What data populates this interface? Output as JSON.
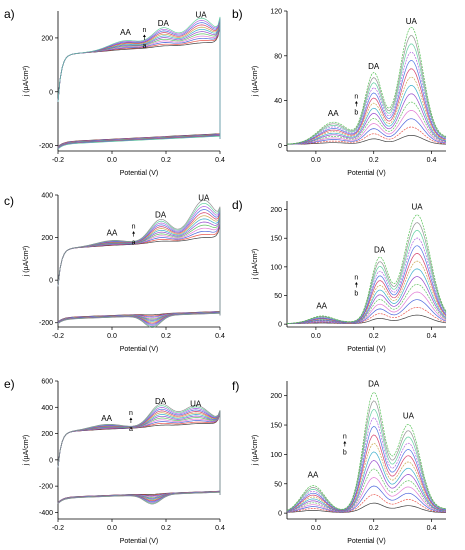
{
  "figure": {
    "xlabel": "Potential (V)",
    "ylabel_cv": "j (µA/cm²)",
    "ylabel_dpv": "j (µA/cm²)",
    "series_palette": [
      "#2e2e2e",
      "#e8463c",
      "#3a55d8",
      "#e070d0",
      "#55bb55",
      "#8c38c8",
      "#2aa8c8",
      "#c8a040",
      "#d03060",
      "#4068e0",
      "#aa55dd",
      "#55cc99",
      "#888888",
      "#44bb44"
    ]
  },
  "chart_data": [
    {
      "panel": "a)",
      "type": "line",
      "technique": "CV",
      "xlabel": "Potential (V)",
      "ylabel": "j (µA/cm²)",
      "xlim": [
        -0.2,
        0.4
      ],
      "ylim": [
        -220,
        300
      ],
      "xticks": [
        "-0.2",
        "0.0",
        "0.2",
        "0.4"
      ],
      "yticks": [
        "-200",
        "0",
        "200"
      ],
      "peaks": [
        {
          "label": "AA",
          "x": 0.05
        },
        {
          "label": "DA",
          "x": 0.19
        },
        {
          "label": "UA",
          "x": 0.33
        }
      ],
      "arrow": {
        "from": "n",
        "to": "a",
        "x": 0.12
      },
      "n_curves": 12,
      "top_base": 150,
      "bottom_base": -170,
      "edge_high": 275,
      "edge_low": -200,
      "peak_heights_last": [
        35,
        70,
        100
      ],
      "cathodic_dip": 0
    },
    {
      "panel": "b)",
      "type": "line",
      "technique": "DPV",
      "xlabel": "Potential (V)",
      "ylabel": "j (µA/cm²)",
      "xlim": [
        -0.1,
        0.45
      ],
      "ylim": [
        -5,
        120
      ],
      "xticks": [
        "0.0",
        "0.2",
        "0.4"
      ],
      "yticks": [
        "0",
        "40",
        "80",
        "120"
      ],
      "peaks": [
        {
          "label": "AA",
          "x": 0.06
        },
        {
          "label": "DA",
          "x": 0.2
        },
        {
          "label": "UA",
          "x": 0.33
        }
      ],
      "arrow": {
        "from": "n",
        "to": "b",
        "x": 0.14
      },
      "n_curves": 14,
      "peak_heights_last": [
        18,
        60,
        100
      ],
      "peak_widths": [
        0.05,
        0.03,
        0.04
      ]
    },
    {
      "panel": "c)",
      "type": "line",
      "technique": "CV",
      "xlabel": "Potential (V)",
      "ylabel": "j (µA/cm²)",
      "xlim": [
        -0.2,
        0.4
      ],
      "ylim": [
        -220,
        400
      ],
      "xticks": [
        "-0.2",
        "0.0",
        "0.2",
        "0.4"
      ],
      "yticks": [
        "-200",
        "0",
        "200",
        "400"
      ],
      "peaks": [
        {
          "label": "AA",
          "x": 0.0
        },
        {
          "label": "DA",
          "x": 0.18
        },
        {
          "label": "UA",
          "x": 0.34
        }
      ],
      "arrow": {
        "from": "n",
        "to": "a",
        "x": 0.08
      },
      "n_curves": 13,
      "top_base": 160,
      "bottom_base": -160,
      "edge_high": 285,
      "edge_low": -195,
      "peak_heights_last": [
        25,
        110,
        190
      ],
      "cathodic_dip": 55
    },
    {
      "panel": "d)",
      "type": "line",
      "technique": "DPV",
      "xlabel": "Potential (V)",
      "ylabel": "j (µA/cm²)",
      "xlim": [
        -0.1,
        0.45
      ],
      "ylim": [
        -5,
        215
      ],
      "xticks": [
        "0.0",
        "0.2",
        "0.4"
      ],
      "yticks": [
        "0",
        "50",
        "100",
        "150",
        "200"
      ],
      "peaks": [
        {
          "label": "AA",
          "x": 0.02
        },
        {
          "label": "DA",
          "x": 0.22
        },
        {
          "label": "UA",
          "x": 0.35
        }
      ],
      "arrow": {
        "from": "n",
        "to": "b",
        "x": 0.14
      },
      "n_curves": 14,
      "peak_heights_last": [
        12,
        110,
        185
      ],
      "peak_widths": [
        0.04,
        0.03,
        0.045
      ]
    },
    {
      "panel": "e)",
      "type": "line",
      "technique": "CV",
      "xlabel": "Potential (V)",
      "ylabel": "j (µA/cm²)",
      "xlim": [
        -0.2,
        0.4
      ],
      "ylim": [
        -450,
        600
      ],
      "xticks": [
        "-0.2",
        "0.0",
        "0.2",
        "0.4"
      ],
      "yticks": [
        "-400",
        "-200",
        "0",
        "200",
        "400",
        "600"
      ],
      "peaks": [
        {
          "label": "AA",
          "x": -0.02
        },
        {
          "label": "DA",
          "x": 0.18
        },
        {
          "label": "UA",
          "x": 0.31
        }
      ],
      "arrow": {
        "from": "n",
        "to": "a",
        "x": 0.07
      },
      "n_curves": 13,
      "top_base": 230,
      "bottom_base": -260,
      "edge_high": 380,
      "edge_low": -330,
      "peak_heights_last": [
        40,
        170,
        150
      ],
      "cathodic_dip": 70
    },
    {
      "panel": "f)",
      "type": "line",
      "technique": "DPV",
      "xlabel": "Potential (V)",
      "ylabel": "j (µA/cm²)",
      "xlim": [
        -0.1,
        0.45
      ],
      "ylim": [
        -10,
        225
      ],
      "xticks": [
        "0.0",
        "0.2",
        "0.4"
      ],
      "yticks": [
        "0",
        "50",
        "100",
        "150",
        "200"
      ],
      "peaks": [
        {
          "label": "AA",
          "x": -0.01
        },
        {
          "label": "DA",
          "x": 0.2
        },
        {
          "label": "UA",
          "x": 0.32
        }
      ],
      "arrow": {
        "from": "n",
        "to": "b",
        "x": 0.1
      },
      "n_curves": 14,
      "peak_heights_last": [
        45,
        200,
        145
      ],
      "peak_widths": [
        0.04,
        0.035,
        0.04
      ]
    }
  ]
}
